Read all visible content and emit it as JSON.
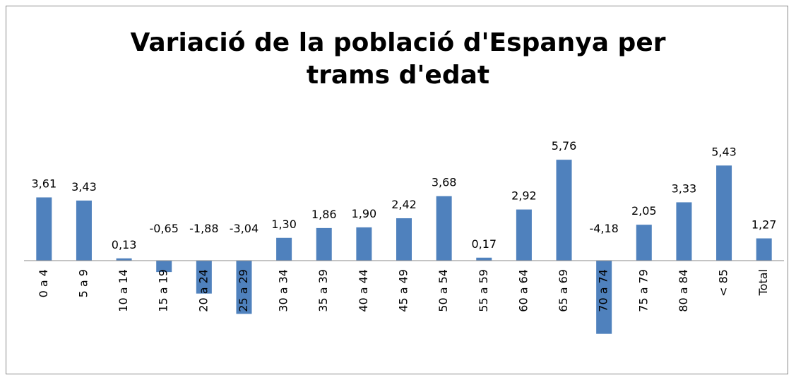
{
  "chart_data": {
    "type": "bar",
    "title": "Variació de la població d'Espanya per trams d'edat",
    "categories": [
      "0 a 4",
      "5 a 9",
      "10 a 14",
      "15 a 19",
      "20 a 24",
      "25 a 29",
      "30 a 34",
      "35 a 39",
      "40 a 44",
      "45 a 49",
      "50 a 54",
      "55 a 59",
      "60 a 64",
      "65 a 69",
      "70 a 74",
      "75 a 79",
      "80 a 84",
      "< 85",
      "Total"
    ],
    "values": [
      3.61,
      3.43,
      0.13,
      -0.65,
      -1.88,
      -3.04,
      1.3,
      1.86,
      1.9,
      2.42,
      3.68,
      0.17,
      2.92,
      5.76,
      -4.18,
      2.05,
      3.33,
      5.43,
      1.27
    ],
    "value_labels": [
      "3,61",
      "3,43",
      "0,13",
      "-0,65",
      "-1,88",
      "-3,04",
      "1,30",
      "1,86",
      "1,90",
      "2,42",
      "3,68",
      "0,17",
      "2,92",
      "5,76",
      "-4,18",
      "2,05",
      "3,33",
      "5,43",
      "1,27"
    ],
    "color": "#4f81bd"
  }
}
